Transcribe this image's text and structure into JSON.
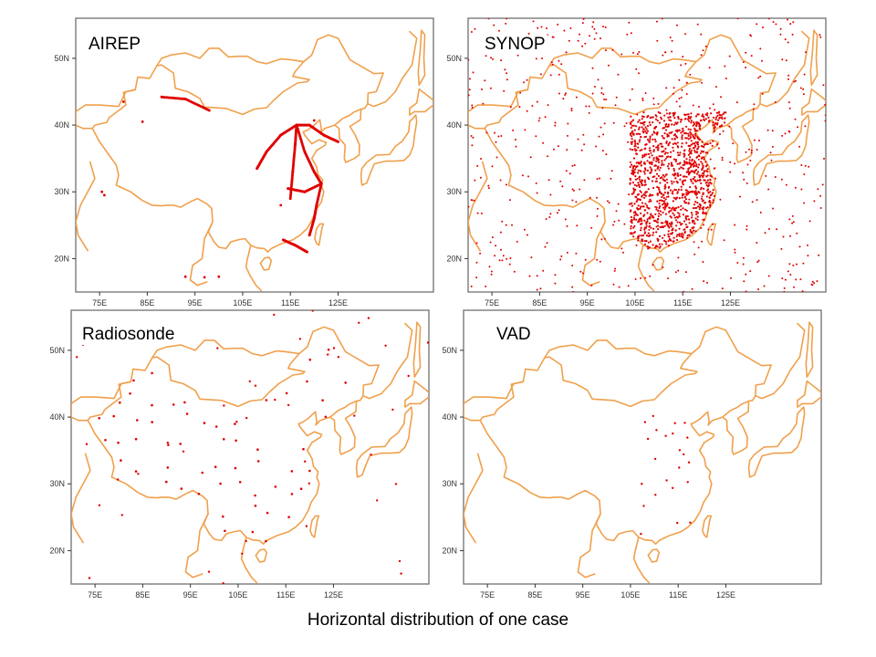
{
  "caption": "Horizontal distribution of one case",
  "panels": [
    {
      "id": "airep",
      "label": "AIREP",
      "obs": "flight tracks"
    },
    {
      "id": "synop",
      "label": "SYNOP",
      "obs": "dense surface stations"
    },
    {
      "id": "radiosonde",
      "label": "Radiosonde",
      "obs": "upper-air stations"
    },
    {
      "id": "vad",
      "label": "VAD",
      "obs": "eastern radar sites"
    }
  ],
  "axes": {
    "lat_ticks": [
      "50N",
      "40N",
      "30N",
      "20N"
    ],
    "lon_ticks": [
      "75E",
      "85E",
      "95E",
      "105E",
      "115E",
      "125E"
    ]
  },
  "colors": {
    "coast": "#f0a04c",
    "obs": "#e00000",
    "frame": "#7a7a7a"
  }
}
